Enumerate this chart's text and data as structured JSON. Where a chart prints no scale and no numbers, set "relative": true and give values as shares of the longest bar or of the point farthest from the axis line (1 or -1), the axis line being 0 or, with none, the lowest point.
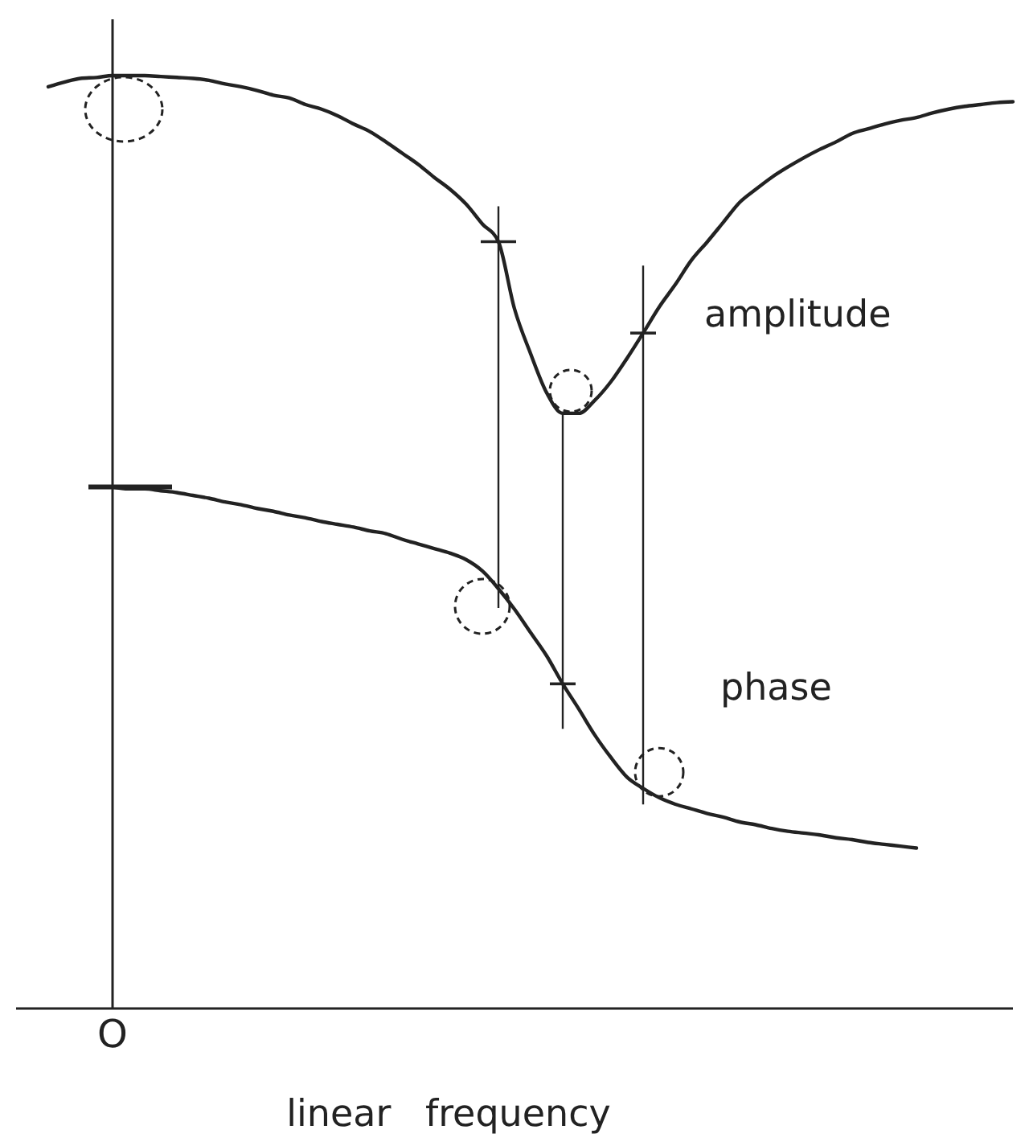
{
  "chart_data": {
    "type": "line",
    "xlabel": "linear frequency",
    "relative": true,
    "annotations": [
      "O"
    ],
    "categories": [
      null,
      null,
      null,
      null,
      null,
      null,
      null,
      null,
      null,
      null,
      null,
      null,
      null,
      null,
      null,
      null,
      null,
      null,
      null,
      null,
      null,
      null,
      null,
      null,
      null,
      null,
      null,
      null,
      null,
      null,
      null,
      null,
      null,
      null,
      null,
      null,
      null,
      null,
      null,
      null,
      null,
      null,
      null,
      null,
      null,
      null,
      null,
      null,
      null,
      null,
      null,
      null,
      null,
      null,
      null,
      null,
      null,
      null,
      null,
      null,
      null,
      null,
      null
    ],
    "series": [
      {
        "name": "amplitude",
        "color": "#222222",
        "values": [
          null,
          null,
          0.988,
          0.993,
          0.997,
          0.998,
          1,
          1,
          1,
          0.999,
          0.998,
          0.997,
          0.995,
          0.991,
          0.988,
          0.984,
          0.979,
          0.976,
          0.969,
          0.964,
          0.957,
          0.948,
          0.94,
          0.929,
          0.917,
          0.905,
          0.891,
          0.878,
          0.862,
          0.841,
          0.822,
          0.75,
          0.702,
          0.66,
          0.638,
          0.638,
          0.652,
          0.672,
          0.697,
          0.724,
          0.752,
          0.776,
          0.802,
          0.822,
          0.843,
          0.864,
          0.878,
          0.891,
          0.902,
          0.912,
          0.921,
          0.929,
          0.938,
          0.943,
          0.948,
          0.952,
          0.955,
          0.96,
          0.964,
          0.967,
          0.969,
          0.971,
          0.972
        ]
      },
      {
        "name": "phase",
        "color": "#222222",
        "values": [
          null,
          null,
          null,
          null,
          null,
          null,
          0.559,
          0.557,
          0.557,
          0.555,
          0.553,
          0.55,
          0.547,
          0.543,
          0.54,
          0.536,
          0.533,
          0.529,
          0.526,
          0.522,
          0.519,
          0.516,
          0.512,
          0.509,
          0.503,
          0.498,
          0.493,
          0.488,
          0.481,
          0.469,
          0.45,
          0.428,
          0.403,
          0.378,
          0.348,
          0.321,
          0.293,
          0.269,
          0.248,
          0.236,
          0.226,
          0.219,
          0.214,
          0.209,
          0.205,
          0.2,
          0.197,
          0.193,
          0.19,
          0.188,
          0.186,
          0.183,
          0.181,
          0.178,
          0.176,
          0.174,
          0.172,
          null,
          null,
          null,
          null,
          null,
          null
        ]
      }
    ]
  }
}
